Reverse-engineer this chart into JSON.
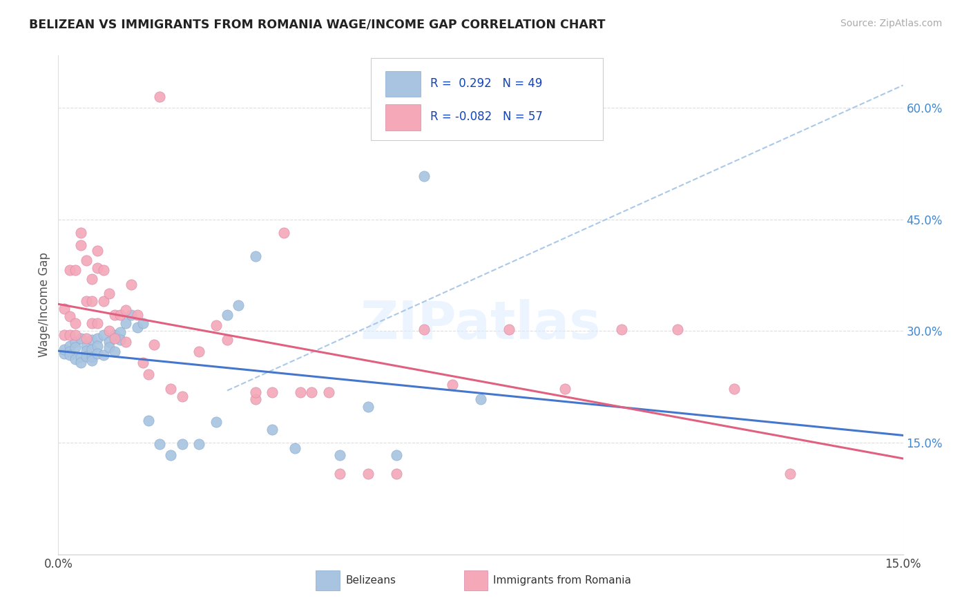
{
  "title": "BELIZEAN VS IMMIGRANTS FROM ROMANIA WAGE/INCOME GAP CORRELATION CHART",
  "source": "Source: ZipAtlas.com",
  "ylabel": "Wage/Income Gap",
  "y_tick_vals": [
    0.15,
    0.3,
    0.45,
    0.6
  ],
  "x_range": [
    0.0,
    0.15
  ],
  "y_range": [
    0.0,
    0.67
  ],
  "legend_label1": "Belizeans",
  "legend_label2": "Immigrants from Romania",
  "R1": 0.292,
  "N1": 49,
  "R2": -0.082,
  "N2": 57,
  "color1": "#a8c4e0",
  "color2": "#f4a8b8",
  "line1_color": "#4477cc",
  "line2_color": "#e06080",
  "dash_color": "#aac8e8",
  "bel_x": [
    0.001,
    0.001,
    0.002,
    0.002,
    0.002,
    0.003,
    0.003,
    0.003,
    0.004,
    0.004,
    0.004,
    0.005,
    0.005,
    0.005,
    0.006,
    0.006,
    0.006,
    0.006,
    0.007,
    0.007,
    0.007,
    0.008,
    0.008,
    0.009,
    0.009,
    0.01,
    0.01,
    0.011,
    0.011,
    0.012,
    0.013,
    0.014,
    0.015,
    0.016,
    0.018,
    0.02,
    0.022,
    0.025,
    0.028,
    0.03,
    0.032,
    0.035,
    0.038,
    0.042,
    0.05,
    0.055,
    0.06,
    0.065,
    0.075
  ],
  "bel_y": [
    0.27,
    0.275,
    0.28,
    0.272,
    0.268,
    0.285,
    0.278,
    0.262,
    0.29,
    0.265,
    0.258,
    0.28,
    0.273,
    0.266,
    0.288,
    0.275,
    0.265,
    0.26,
    0.29,
    0.28,
    0.27,
    0.295,
    0.268,
    0.285,
    0.278,
    0.295,
    0.272,
    0.298,
    0.288,
    0.31,
    0.322,
    0.305,
    0.31,
    0.18,
    0.148,
    0.133,
    0.148,
    0.148,
    0.178,
    0.322,
    0.335,
    0.4,
    0.168,
    0.143,
    0.133,
    0.198,
    0.133,
    0.508,
    0.208
  ],
  "rom_x": [
    0.001,
    0.001,
    0.002,
    0.002,
    0.002,
    0.003,
    0.003,
    0.003,
    0.004,
    0.004,
    0.005,
    0.005,
    0.005,
    0.006,
    0.006,
    0.006,
    0.007,
    0.007,
    0.007,
    0.008,
    0.008,
    0.009,
    0.009,
    0.01,
    0.01,
    0.011,
    0.012,
    0.012,
    0.013,
    0.014,
    0.015,
    0.016,
    0.017,
    0.018,
    0.02,
    0.022,
    0.025,
    0.028,
    0.03,
    0.035,
    0.04,
    0.045,
    0.05,
    0.06,
    0.065,
    0.08,
    0.09,
    0.1,
    0.11,
    0.12,
    0.13,
    0.035,
    0.038,
    0.043,
    0.048,
    0.055,
    0.07
  ],
  "rom_y": [
    0.33,
    0.295,
    0.382,
    0.32,
    0.295,
    0.382,
    0.31,
    0.295,
    0.432,
    0.415,
    0.395,
    0.34,
    0.29,
    0.37,
    0.34,
    0.31,
    0.408,
    0.385,
    0.31,
    0.382,
    0.34,
    0.35,
    0.3,
    0.322,
    0.29,
    0.322,
    0.328,
    0.285,
    0.362,
    0.322,
    0.258,
    0.242,
    0.282,
    0.615,
    0.222,
    0.212,
    0.272,
    0.308,
    0.288,
    0.208,
    0.432,
    0.218,
    0.108,
    0.108,
    0.302,
    0.302,
    0.222,
    0.302,
    0.302,
    0.222,
    0.108,
    0.218,
    0.218,
    0.218,
    0.218,
    0.108,
    0.228
  ]
}
